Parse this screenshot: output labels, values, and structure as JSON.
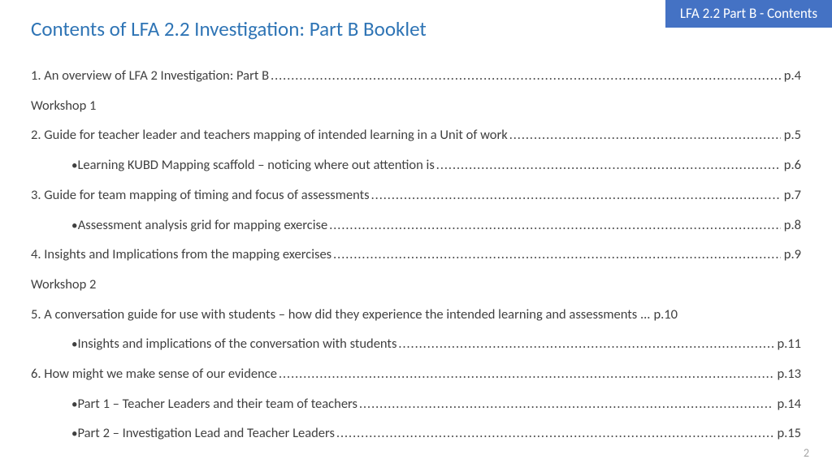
{
  "badge": "LFA 2.2 Part B - Contents",
  "title": "Contents of LFA 2.2 Investigation: Part B Booklet",
  "pageNumber": "2",
  "colors": {
    "badge_bg": "#4472c4",
    "badge_text": "#ffffff",
    "title": "#2e74b5",
    "body": "#404040",
    "page_num": "#a6a6a6",
    "background": "#ffffff"
  },
  "toc": [
    {
      "type": "entry",
      "label": "1. An overview of LFA 2 Investigation: Part B",
      "page": "p.4"
    },
    {
      "type": "heading",
      "label": "Workshop 1"
    },
    {
      "type": "entry",
      "label": "2. Guide for teacher leader and teachers mapping of intended learning in a Unit of work",
      "page": "p.5"
    },
    {
      "type": "sub",
      "label": "Learning KUBD Mapping scaffold – noticing where out attention is ",
      "page": "p.6"
    },
    {
      "type": "entry",
      "label": "3. Guide for team mapping of timing and focus of assessments ",
      "page": "p.7"
    },
    {
      "type": "sub",
      "label": "Assessment analysis grid for mapping exercise ",
      "page": "p.8"
    },
    {
      "type": "entry",
      "label": "4. Insights and Implications from the mapping exercises ",
      "page": "p.9"
    },
    {
      "type": "heading",
      "label": "Workshop 2"
    },
    {
      "type": "entry",
      "label": "5. A conversation guide for use with students – how did they experience the intended learning and assessments ...  ",
      "page": "p.10",
      "nodots": true
    },
    {
      "type": "sub",
      "label": "Insights and implications of the conversation with students ",
      "page": "p.11"
    },
    {
      "type": "entry",
      "label": "6. How might we make sense of our evidence ",
      "page": "p.13"
    },
    {
      "type": "sub",
      "label": "Part 1 – Teacher Leaders and their team of teachers ",
      "page": "p.14"
    },
    {
      "type": "sub",
      "label": "Part 2 – Investigation Lead and Teacher Leaders ",
      "page": "p.15"
    }
  ]
}
